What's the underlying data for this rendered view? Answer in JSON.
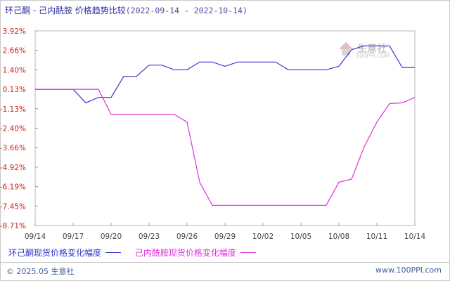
{
  "title": {
    "main": "环己酮 - 己内酰胺 价格趋势比较",
    "range": "(2022-09-14 - 2022-10-14)"
  },
  "watermark": {
    "brand": "生意社",
    "url": "100PPI.COM"
  },
  "legend": [
    {
      "label": "环己酮现货价格变化幅度",
      "color": "#3333cc"
    },
    {
      "label": "己内酰胺现货价格变化幅度",
      "color": "#dd33dd"
    }
  ],
  "footer": {
    "copyright": "© 2025.05 生意社",
    "site": "www.100PPI.com"
  },
  "chart_data": {
    "type": "line",
    "x": [
      "09/14",
      "09/15",
      "09/16",
      "09/17",
      "09/18",
      "09/19",
      "09/20",
      "09/21",
      "09/22",
      "09/23",
      "09/24",
      "09/25",
      "09/26",
      "09/27",
      "09/28",
      "09/29",
      "09/30",
      "10/01",
      "10/02",
      "10/03",
      "10/04",
      "10/05",
      "10/06",
      "10/07",
      "10/08",
      "10/09",
      "10/10",
      "10/11",
      "10/12",
      "10/13",
      "10/14"
    ],
    "x_ticks": [
      "09/14",
      "09/17",
      "09/20",
      "09/23",
      "09/26",
      "09/29",
      "10/02",
      "10/05",
      "10/08",
      "10/11",
      "10/14"
    ],
    "y_ticks": [
      3.92,
      2.66,
      1.4,
      0.13,
      -1.13,
      -2.4,
      -3.66,
      -4.92,
      -6.19,
      -7.45,
      -8.71
    ],
    "y_tick_labels": [
      "3.92%",
      "2.66%",
      "1.40%",
      "0.13%",
      "-1.13%",
      "-2.40%",
      "-3.66%",
      "-4.92%",
      "-6.19%",
      "-7.45%",
      "-8.71%"
    ],
    "ylim": [
      -8.71,
      3.92
    ],
    "grid": false,
    "legend_position": "bottom",
    "series": [
      {
        "name": "环己酮现货价格变化幅度",
        "color": "#3333cc",
        "values": [
          0.13,
          0.13,
          0.13,
          0.13,
          -0.75,
          -0.4,
          -0.4,
          0.97,
          0.97,
          1.7,
          1.7,
          1.4,
          1.4,
          1.9,
          1.9,
          1.62,
          1.9,
          1.9,
          1.9,
          1.9,
          1.4,
          1.4,
          1.4,
          1.4,
          1.62,
          2.7,
          2.95,
          2.95,
          2.95,
          1.55,
          1.55
        ]
      },
      {
        "name": "己内酰胺现货价格变化幅度",
        "color": "#dd33dd",
        "values": [
          0.13,
          0.13,
          0.13,
          0.13,
          0.13,
          0.13,
          -1.5,
          -1.5,
          -1.5,
          -1.5,
          -1.5,
          -1.5,
          -2.0,
          -5.9,
          -7.4,
          -7.4,
          -7.4,
          -7.4,
          -7.4,
          -7.4,
          -7.4,
          -7.4,
          -7.4,
          -7.4,
          -5.9,
          -5.7,
          -3.6,
          -2.0,
          -0.8,
          -0.75,
          -0.4
        ]
      }
    ]
  }
}
